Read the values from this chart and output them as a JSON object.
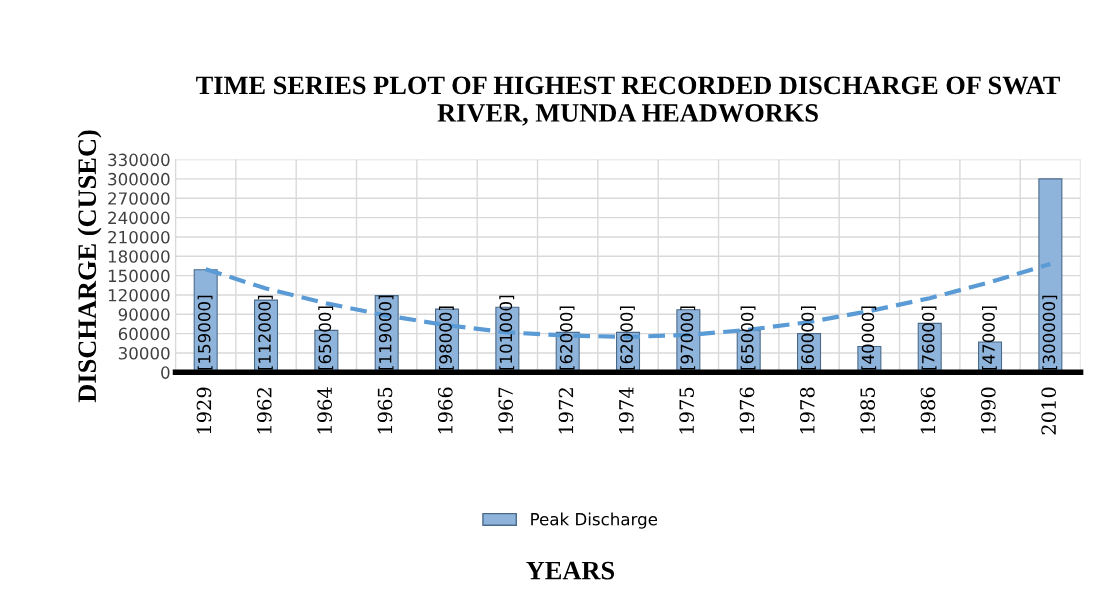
{
  "chart_data": {
    "type": "bar",
    "title": "TIME SERIES PLOT OF HIGHEST RECORDED DISCHARGE OF SWAT RIVER, MUNDA HEADWORKS",
    "xlabel": "YEARS",
    "ylabel": "DISCHARGE (CUSEC)",
    "categories": [
      "1929",
      "1962",
      "1964",
      "1965",
      "1966",
      "1967",
      "1972",
      "1974",
      "1975",
      "1976",
      "1978",
      "1985",
      "1986",
      "1990",
      "2010"
    ],
    "series": [
      {
        "name": "Peak Discharge",
        "color": "#8fb4db",
        "values": [
          159000,
          112000,
          65000,
          119000,
          98000,
          101000,
          62000,
          62000,
          97000,
          65000,
          60000,
          40000,
          76000,
          47000,
          300000
        ],
        "value_labels": [
          "[159000]",
          "[112000]",
          "[65000]",
          "[119000]",
          "[98000]",
          "[101000]",
          "[62000]",
          "[62000]",
          "[97000]",
          "[65000]",
          "[60000]",
          "[40000]",
          "[76000]",
          "[47000]",
          "[300000]"
        ]
      },
      {
        "type": "line",
        "color": "#5b9bd5",
        "line_style": "dashed",
        "values": [
          160000,
          130000,
          107000,
          88000,
          73000,
          62000,
          57000,
          55000,
          58000,
          66000,
          78000,
          95000,
          115000,
          140000,
          168000
        ]
      }
    ],
    "ylim": [
      0,
      330000
    ],
    "yticks": [
      0,
      30000,
      60000,
      90000,
      120000,
      150000,
      180000,
      210000,
      240000,
      270000,
      300000,
      330000
    ],
    "grid": true,
    "legend": "bottom"
  }
}
